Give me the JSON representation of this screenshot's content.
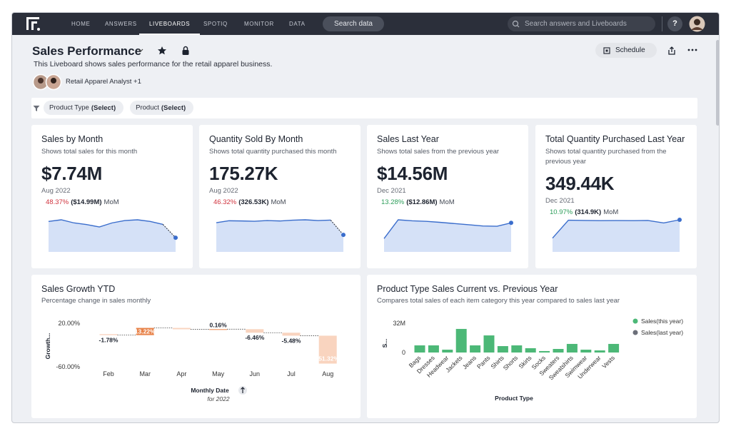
{
  "nav": {
    "items": [
      "HOME",
      "ANSWERS",
      "LIVEBOARDS",
      "SPOTIQ",
      "MONITOR",
      "DATA"
    ],
    "active": 2,
    "search_button": "Search data",
    "search_placeholder": "Search answers and Liveboards",
    "help": "?"
  },
  "header": {
    "title": "Sales Performance",
    "description": "This Liveboard shows sales performance for the retail apparel business.",
    "authors": "Retail Apparel Analyst +1",
    "schedule": "Schedule"
  },
  "filters": [
    {
      "name": "Product Type",
      "value": "(Select)"
    },
    {
      "name": "Product",
      "value": "(Select)"
    }
  ],
  "kpis": [
    {
      "title": "Sales by Month",
      "subtitle": "Shows total sales for this month",
      "value": "$7.74M",
      "date": "Aug 2022",
      "change": "48.37%",
      "previous": "($14.99M)",
      "period": "MoM",
      "direction": "down",
      "color": "#d0343e",
      "dashed_last": true,
      "sparkline": [
        16.6,
        17.5,
        15.8,
        14.9,
        13.6,
        15.8,
        17.1,
        17.5,
        16.6,
        14.99,
        7.74
      ]
    },
    {
      "title": "Quantity Sold By Month",
      "subtitle": "Shows total quantity purchased this month",
      "value": "175.27K",
      "date": "Aug 2022",
      "change": "46.32%",
      "previous": "(326.53K)",
      "period": "MoM",
      "direction": "down",
      "color": "#d0343e",
      "dashed_last": true,
      "sparkline": [
        300,
        320,
        318,
        315,
        322,
        318,
        326,
        330,
        322,
        326.53,
        175.27
      ]
    },
    {
      "title": "Sales Last Year",
      "subtitle": "Shows total sales from the previous year",
      "value": "$14.56M",
      "date": "Dec 2021",
      "change": "13.28%",
      "previous": "($12.86M)",
      "period": "MoM",
      "direction": "up",
      "color": "#2e9e5b",
      "dashed_last": false,
      "sparkline": [
        6.7,
        16.1,
        15.6,
        15.3,
        14.8,
        14.2,
        13.6,
        13.0,
        12.86,
        14.56
      ]
    },
    {
      "title": "Total Quantity Purchased Last Year",
      "subtitle": "Shows total quantity purchased from the previous year",
      "value": "349.44K",
      "date": "Dec 2021",
      "change": "10.97%",
      "previous": "(314.9K)",
      "period": "MoM",
      "direction": "up",
      "color": "#2e9e5b",
      "dashed_last": false,
      "sparkline": [
        150,
        345,
        342,
        340,
        341,
        340,
        342,
        314.9,
        349.44
      ]
    }
  ],
  "growth_chart": {
    "type": "waterfall",
    "title": "Sales Growth YTD",
    "subtitle": "Percentage change in sales monthly",
    "y_label": "Growth...",
    "x_label": "Monthly Date",
    "x_sublabel": "for 2022",
    "categories": [
      "Feb",
      "Mar",
      "Apr",
      "May",
      "Jun",
      "Jul",
      "Aug"
    ],
    "values": [
      -1.78,
      13.22,
      -2.5,
      0.16,
      -6.46,
      -5.48,
      -51.32
    ],
    "value_labels": [
      "-1.78%",
      "13.22%",
      null,
      "0.16%",
      "-6.46%",
      "-5.48%",
      "-51.32%"
    ],
    "ylim": [
      -60,
      20
    ],
    "yticks": [
      {
        "value": 20,
        "label": "20.00%"
      },
      {
        "value": -60,
        "label": "-60.00%"
      }
    ],
    "positive_color": "#e8834a",
    "negative_color": "#f9d4bf"
  },
  "product_chart": {
    "type": "bar",
    "title": "Product Type Sales Current vs. Previous Year",
    "subtitle": "Compares total sales of each item category this year compared to sales last year",
    "y_label": "S...",
    "x_label": "Product Type",
    "categories": [
      "Bags",
      "Dresses",
      "Headwear",
      "Jackets",
      "Jeans",
      "Pants",
      "Shirts",
      "Shorts",
      "Skirts",
      "Socks",
      "Sweaters",
      "Sweatshirts",
      "Swimwear",
      "Underwear",
      "Vests"
    ],
    "values": [
      7800000,
      7800000,
      3100000,
      25800000,
      7800000,
      18700000,
      7000000,
      7800000,
      4700000,
      1600000,
      3900000,
      9400000,
      3100000,
      2300000,
      9400000
    ],
    "color": "#4cb877",
    "ylim": [
      0,
      32000000
    ],
    "yticks": [
      0,
      {
        "value": 32000000,
        "label": "32M"
      }
    ],
    "legend": [
      {
        "name": "Sales(this year)",
        "color": "#4cb877"
      },
      {
        "name": "Sales(last year)",
        "color": "#6b6f79"
      }
    ]
  }
}
